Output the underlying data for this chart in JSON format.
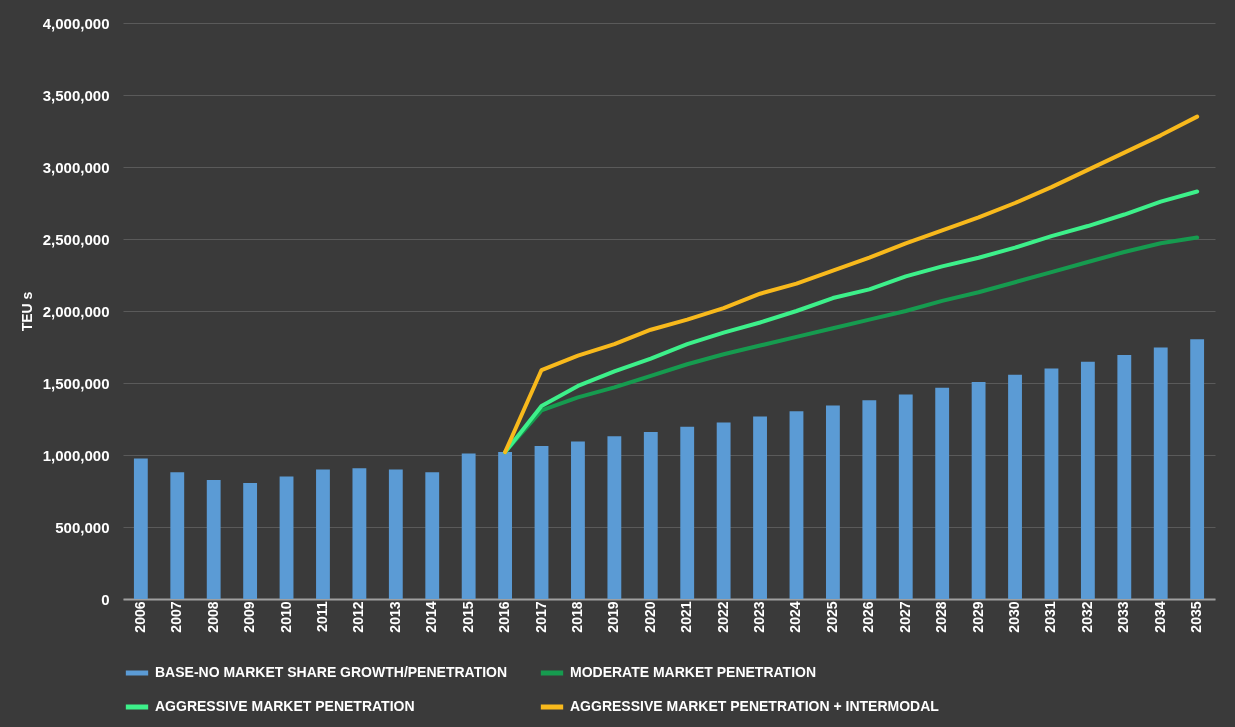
{
  "chart_data": {
    "type": "bar",
    "ylabel": "TEU s",
    "categories": [
      "2006",
      "2007",
      "2008",
      "2009",
      "2010",
      "2011",
      "2012",
      "2013",
      "2014",
      "2015",
      "2016",
      "2017",
      "2018",
      "2019",
      "2020",
      "2021",
      "2022",
      "2023",
      "2024",
      "2025",
      "2026",
      "2027",
      "2028",
      "2029",
      "2030",
      "2031",
      "2032",
      "2033",
      "2034",
      "2035"
    ],
    "series": [
      {
        "name": "BASE-NO MARKET SHARE GROWTH/PENETRATION",
        "color": "#5b9bd5",
        "values": [
          975000,
          880000,
          827000,
          805000,
          850000,
          900000,
          908000,
          900000,
          880000,
          1010000,
          1020000,
          1063000,
          1093000,
          1130000,
          1160000,
          1196000,
          1226000,
          1267000,
          1303000,
          1344000,
          1381000,
          1421000,
          1467000,
          1507000,
          1558000,
          1600000,
          1648000,
          1695000,
          1747000,
          1803000
        ]
      },
      {
        "name": "MODERATE MARKET PENETRATION",
        "type": "line",
        "color": "#169b4f",
        "values": [
          null,
          null,
          null,
          null,
          null,
          null,
          null,
          null,
          null,
          null,
          1020000,
          1310000,
          1400000,
          1470000,
          1550000,
          1630000,
          1700000,
          1760000,
          1820000,
          1880000,
          1940000,
          2000000,
          2070000,
          2130000,
          2200000,
          2270000,
          2340000,
          2410000,
          2470000,
          2510000
        ]
      },
      {
        "name": "AGGRESSIVE MARKET PENETRATION",
        "type": "line",
        "color": "#3df08a",
        "values": [
          null,
          null,
          null,
          null,
          null,
          null,
          null,
          null,
          null,
          null,
          1020000,
          1340000,
          1480000,
          1580000,
          1670000,
          1770000,
          1850000,
          1920000,
          2000000,
          2090000,
          2150000,
          2240000,
          2310000,
          2370000,
          2440000,
          2520000,
          2590000,
          2670000,
          2760000,
          2830000
        ]
      },
      {
        "name": "AGGRESSIVE MARKET PENETRATION + INTERMODAL",
        "type": "line",
        "color": "#f8b91c",
        "values": [
          null,
          null,
          null,
          null,
          null,
          null,
          null,
          null,
          null,
          null,
          1020000,
          1590000,
          1690000,
          1770000,
          1870000,
          1940000,
          2020000,
          2120000,
          2190000,
          2280000,
          2370000,
          2470000,
          2560000,
          2650000,
          2750000,
          2860000,
          2980000,
          3100000,
          3220000,
          3350000
        ]
      }
    ],
    "ylim": [
      0,
      4000000
    ],
    "yticks": [
      0,
      {
        "value": 500000,
        "label": "500,000"
      },
      {
        "value": 1000000,
        "label": "1,000,000"
      },
      {
        "value": 1500000,
        "label": "1,500,000"
      },
      {
        "value": 2000000,
        "label": "2,000,000"
      },
      {
        "value": 2500000,
        "label": "2,500,000"
      },
      {
        "value": 3000000,
        "label": "3,000,000"
      },
      {
        "value": 3500000,
        "label": "3,500,000"
      },
      {
        "value": 4000000,
        "label": "4,000,000"
      }
    ],
    "grid": "y",
    "legend": "bottom",
    "line_style": "solid",
    "marker": "none"
  }
}
